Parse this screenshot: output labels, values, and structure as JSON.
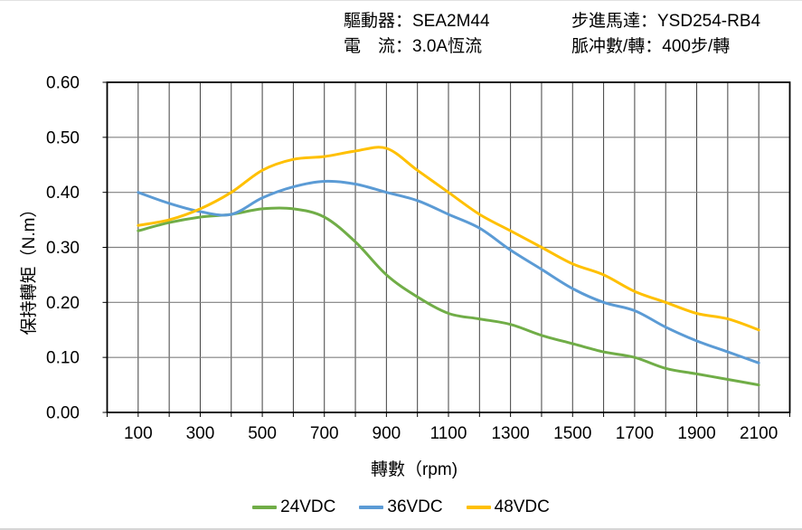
{
  "header": {
    "driver": "驅動器：SEA2M44",
    "current": "電　流：3.0A恆流",
    "motor": "步進馬達：YSD254-RB4",
    "pulses": "脈冲數/轉：400步/轉"
  },
  "chart_data": {
    "type": "line",
    "xlabel": "轉數（rpm)",
    "ylabel": "保持轉矩（N.m）",
    "xlim": [
      0,
      2200
    ],
    "ylim": [
      0,
      0.6
    ],
    "x_gridline_step": 100,
    "y_gridline_step": 0.1,
    "grid": true,
    "legend_position": "bottom",
    "x": [
      100,
      200,
      300,
      400,
      500,
      600,
      700,
      800,
      900,
      1000,
      1100,
      1200,
      1300,
      1400,
      1500,
      1600,
      1700,
      1800,
      1900,
      2000,
      2100
    ],
    "x_tick_labels": [
      "100",
      "300",
      "500",
      "700",
      "900",
      "1100",
      "1300",
      "1500",
      "1700",
      "1900",
      "2100"
    ],
    "x_tick_values": [
      100,
      300,
      500,
      700,
      900,
      1100,
      1300,
      1500,
      1700,
      1900,
      2100
    ],
    "y_tick_labels": [
      "0.00",
      "0.10",
      "0.20",
      "0.30",
      "0.40",
      "0.50",
      "0.60"
    ],
    "y_tick_values": [
      0,
      0.1,
      0.2,
      0.3,
      0.4,
      0.5,
      0.6
    ],
    "series": [
      {
        "name": "24VDC",
        "color": "#70AD47",
        "values": [
          0.33,
          0.345,
          0.355,
          0.36,
          0.37,
          0.37,
          0.355,
          0.31,
          0.25,
          0.21,
          0.18,
          0.17,
          0.16,
          0.14,
          0.125,
          0.11,
          0.1,
          0.08,
          0.07,
          0.06,
          0.05
        ]
      },
      {
        "name": "36VDC",
        "color": "#5B9BD5",
        "values": [
          0.4,
          0.38,
          0.365,
          0.36,
          0.39,
          0.41,
          0.42,
          0.415,
          0.4,
          0.385,
          0.36,
          0.335,
          0.295,
          0.26,
          0.225,
          0.2,
          0.185,
          0.155,
          0.13,
          0.11,
          0.09
        ]
      },
      {
        "name": "48VDC",
        "color": "#FFC000",
        "values": [
          0.34,
          0.35,
          0.37,
          0.4,
          0.44,
          0.46,
          0.465,
          0.475,
          0.48,
          0.44,
          0.4,
          0.36,
          0.33,
          0.3,
          0.27,
          0.25,
          0.22,
          0.2,
          0.18,
          0.17,
          0.15
        ]
      }
    ],
    "colors": {
      "vertical_grid": "#404040",
      "horizontal_grid": "#808080",
      "plot_border": "#000000",
      "tick": "#000000",
      "label_text": "#000000",
      "background": "#ffffff"
    }
  }
}
